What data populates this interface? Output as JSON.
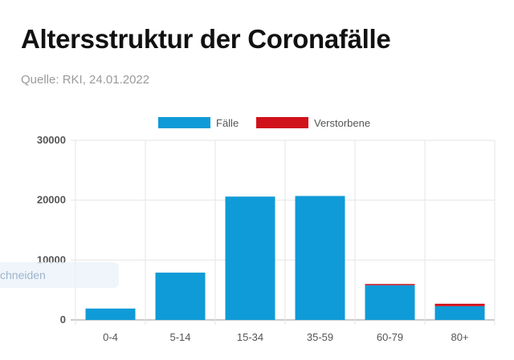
{
  "page": {
    "title": "Altersstruktur der Coronafälle",
    "source": "Quelle: RKI, 24.01.2022",
    "overlay_fragment": "chneiden"
  },
  "chart_data": {
    "type": "bar",
    "stacked": true,
    "categories": [
      "0-4",
      "5-14",
      "15-34",
      "35-59",
      "60-79",
      "80+"
    ],
    "series": [
      {
        "name": "Fälle",
        "color": "#0f9bd7",
        "values": [
          1900,
          7900,
          20600,
          20700,
          5800,
          2300
        ]
      },
      {
        "name": "Verstorbene",
        "color": "#d0121b",
        "values": [
          0,
          0,
          0,
          0,
          200,
          400
        ]
      }
    ],
    "ylim": [
      0,
      30000
    ],
    "yticks": [
      0,
      10000,
      20000,
      30000
    ],
    "grid": true,
    "legend_position": "top-center"
  }
}
